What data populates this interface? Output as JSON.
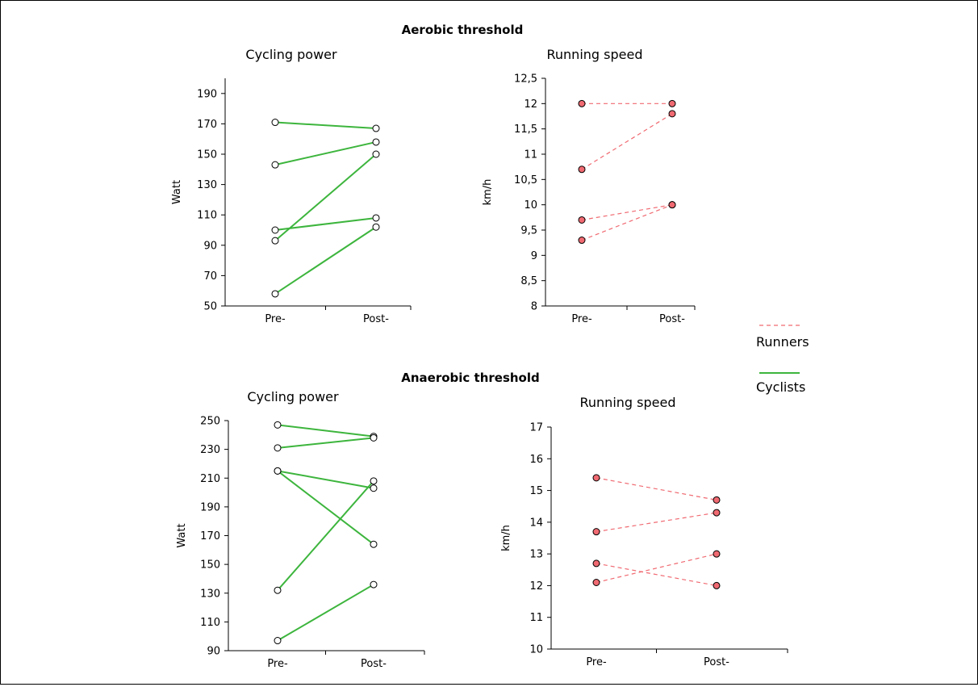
{
  "colors": {
    "cyclists": "#3db53d",
    "runners": "#f06a72",
    "runner_marker_fill": "#f06a72",
    "cyclist_marker_fill": "#ffffff",
    "axis": "#000000"
  },
  "sections": {
    "aerobic_title": "Aerobic threshold",
    "anaerobic_title": "Anaerobic threshold"
  },
  "legend": {
    "runners_label": "Runners",
    "cyclists_label": "Cyclists"
  },
  "chart_data": [
    {
      "id": "aerobic-cycling",
      "type": "line",
      "title": "Cycling power",
      "ylabel": "Watt",
      "xlabel": "",
      "categories": [
        "Pre-",
        "Post-"
      ],
      "yticks": [
        "50",
        "70",
        "90",
        "110",
        "130",
        "150",
        "170",
        "190"
      ],
      "ylim": [
        50,
        200
      ],
      "group": "cyclists",
      "series": [
        {
          "values": [
            171,
            167
          ]
        },
        {
          "values": [
            143,
            158
          ]
        },
        {
          "values": [
            93,
            150
          ]
        },
        {
          "values": [
            100,
            108
          ]
        },
        {
          "values": [
            58,
            102
          ]
        }
      ]
    },
    {
      "id": "aerobic-running",
      "type": "line",
      "title": "Running speed",
      "ylabel": "km/h",
      "xlabel": "",
      "categories": [
        "Pre-",
        "Post-"
      ],
      "yticks": [
        "8",
        "8,5",
        "9",
        "9,5",
        "10",
        "10,5",
        "11",
        "11,5",
        "12",
        "12,5"
      ],
      "ylim": [
        8,
        12.5
      ],
      "group": "runners",
      "series": [
        {
          "values": [
            12.0,
            12.0
          ]
        },
        {
          "values": [
            10.7,
            11.8
          ]
        },
        {
          "values": [
            9.7,
            10.0
          ]
        },
        {
          "values": [
            9.3,
            10.0
          ]
        }
      ]
    },
    {
      "id": "anaerobic-cycling",
      "type": "line",
      "title": "Cycling power",
      "ylabel": "Watt",
      "xlabel": "",
      "categories": [
        "Pre-",
        "Post-"
      ],
      "yticks": [
        "90",
        "110",
        "130",
        "150",
        "170",
        "190",
        "210",
        "230",
        "250"
      ],
      "ylim": [
        90,
        250
      ],
      "group": "cyclists",
      "series": [
        {
          "values": [
            247,
            239
          ]
        },
        {
          "values": [
            231,
            238
          ]
        },
        {
          "values": [
            215,
            203
          ]
        },
        {
          "values": [
            215,
            164
          ]
        },
        {
          "values": [
            132,
            208
          ]
        },
        {
          "values": [
            97,
            136
          ]
        }
      ]
    },
    {
      "id": "anaerobic-running",
      "type": "line",
      "title": "Running speed",
      "ylabel": "km/h",
      "xlabel": "",
      "categories": [
        "Pre-",
        "Post-"
      ],
      "yticks": [
        "10",
        "11",
        "12",
        "13",
        "14",
        "15",
        "16",
        "17"
      ],
      "ylim": [
        10,
        17
      ],
      "group": "runners",
      "series": [
        {
          "values": [
            15.4,
            14.7
          ]
        },
        {
          "values": [
            13.7,
            14.3
          ]
        },
        {
          "values": [
            12.7,
            12.0
          ]
        },
        {
          "values": [
            12.1,
            13.0
          ]
        }
      ]
    }
  ]
}
